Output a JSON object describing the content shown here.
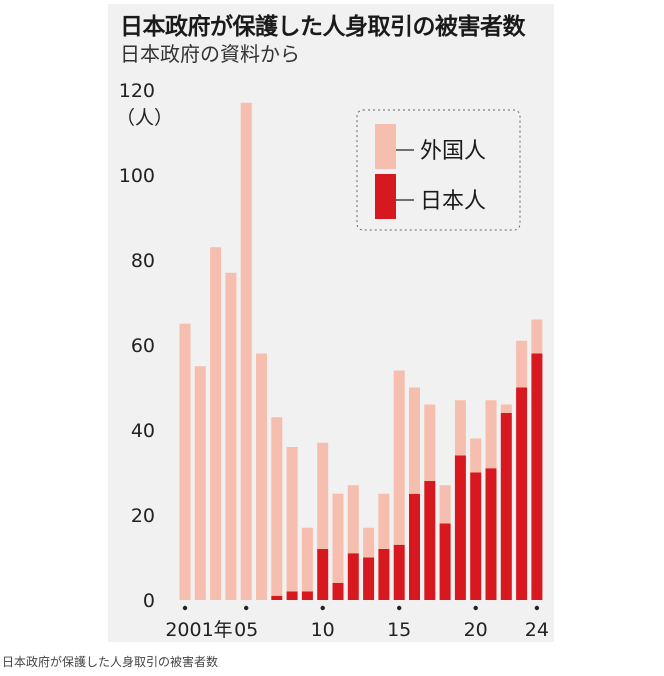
{
  "page": {
    "title": "日本政府が保護した人身取引の被害者数",
    "subtitle": "日本政府の資料から",
    "caption": "日本政府が保護した人身取引の被害者数"
  },
  "chart_data": {
    "type": "bar",
    "stacked": true,
    "title": "日本政府が保護した人身取引の被害者数",
    "subtitle": "日本政府の資料から",
    "x": [
      2001,
      2002,
      2003,
      2004,
      2005,
      2006,
      2007,
      2008,
      2009,
      2010,
      2011,
      2012,
      2013,
      2014,
      2015,
      2016,
      2017,
      2018,
      2019,
      2020,
      2021,
      2022,
      2023,
      2024
    ],
    "x_tick_labels": [
      {
        "x": 2001,
        "label": "2001年"
      },
      {
        "x": 2005,
        "label": "05"
      },
      {
        "x": 2010,
        "label": "10"
      },
      {
        "x": 2015,
        "label": "15"
      },
      {
        "x": 2020,
        "label": "20"
      },
      {
        "x": 2024,
        "label": "24"
      }
    ],
    "series": [
      {
        "name": "日本人",
        "color": "#d7191f",
        "values": [
          0,
          0,
          0,
          0,
          0,
          0,
          1,
          2,
          2,
          12,
          4,
          11,
          10,
          12,
          13,
          25,
          28,
          18,
          34,
          30,
          31,
          44,
          50,
          58
        ]
      },
      {
        "name": "外国人",
        "color": "#f6beae",
        "values": [
          65,
          55,
          83,
          77,
          117,
          58,
          42,
          34,
          15,
          25,
          21,
          16,
          7,
          13,
          41,
          25,
          18,
          9,
          13,
          8,
          16,
          2,
          11,
          8
        ]
      }
    ],
    "ylim": [
      0,
      120
    ],
    "yticks": [
      0,
      20,
      40,
      60,
      80,
      100,
      120
    ],
    "y_unit": "（人）",
    "legend": {
      "position": "top-right",
      "order": [
        "外国人",
        "日本人"
      ]
    },
    "grid": false
  }
}
